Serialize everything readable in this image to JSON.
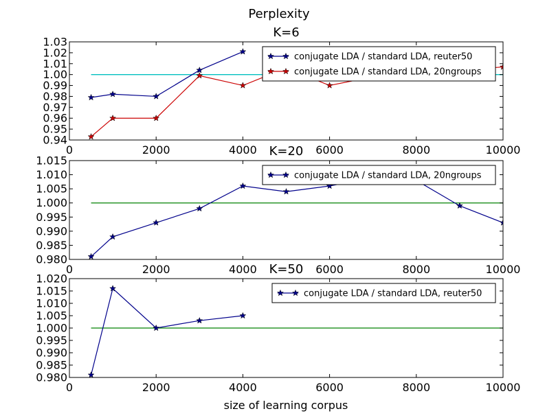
{
  "figure": {
    "suptitle": "Perplexity",
    "xlabel": "size of learning corpus"
  },
  "chart_data": [
    {
      "type": "line",
      "title": "K=6",
      "xlim": [
        0,
        10000
      ],
      "ylim": [
        0.94,
        1.03
      ],
      "xticks": [
        0,
        2000,
        4000,
        6000,
        8000,
        10000
      ],
      "yticks": [
        0.94,
        0.95,
        0.96,
        0.97,
        0.98,
        0.99,
        1.0,
        1.01,
        1.02,
        1.03
      ],
      "ytick_decimals": 2,
      "legend_position": "top-right",
      "reference_line": {
        "y": 1.0,
        "x": [
          500,
          10000
        ],
        "color": "#00bfbf"
      },
      "series": [
        {
          "name": "conjugate LDA / standard LDA, reuter50",
          "color": "#00008b",
          "x": [
            500,
            1000,
            2000,
            3000,
            4000
          ],
          "y": [
            0.979,
            0.982,
            0.98,
            1.004,
            1.021
          ]
        },
        {
          "name": "conjugate LDA / standard LDA, 20ngroups",
          "color": "#cc0000",
          "x": [
            500,
            1000,
            2000,
            3000,
            4000,
            5000,
            6000,
            7000,
            8000,
            9000,
            10000
          ],
          "y": [
            0.943,
            0.96,
            0.96,
            0.999,
            0.99,
            1.006,
            0.99,
            0.998,
            1.003,
            1.004,
            1.007
          ]
        }
      ]
    },
    {
      "type": "line",
      "title": "K=20",
      "xlim": [
        0,
        10000
      ],
      "ylim": [
        0.98,
        1.015
      ],
      "xticks": [
        0,
        2000,
        4000,
        6000,
        8000,
        10000
      ],
      "yticks": [
        0.98,
        0.985,
        0.99,
        0.995,
        1.0,
        1.005,
        1.01,
        1.015
      ],
      "ytick_decimals": 3,
      "legend_position": "top-right",
      "reference_line": {
        "y": 1.0,
        "x": [
          500,
          10000
        ],
        "color": "#008000"
      },
      "series": [
        {
          "name": "conjugate LDA / standard LDA, 20ngroups",
          "color": "#00008b",
          "x": [
            500,
            1000,
            2000,
            3000,
            4000,
            5000,
            6000,
            7000,
            8000,
            9000,
            10000
          ],
          "y": [
            0.981,
            0.988,
            0.993,
            0.998,
            1.006,
            1.004,
            1.006,
            1.009,
            1.008,
            0.999,
            0.993
          ]
        }
      ]
    },
    {
      "type": "line",
      "title": "K=50",
      "xlim": [
        0,
        10000
      ],
      "ylim": [
        0.98,
        1.02
      ],
      "xticks": [
        0,
        2000,
        4000,
        6000,
        8000,
        10000
      ],
      "yticks": [
        0.98,
        0.985,
        0.99,
        0.995,
        1.0,
        1.005,
        1.01,
        1.015,
        1.02
      ],
      "ytick_decimals": 3,
      "legend_position": "top-right",
      "reference_line": {
        "y": 1.0,
        "x": [
          500,
          10000
        ],
        "color": "#008000"
      },
      "series": [
        {
          "name": "conjugate LDA / standard LDA, reuter50",
          "color": "#00008b",
          "x": [
            500,
            1000,
            2000,
            3000,
            4000
          ],
          "y": [
            0.981,
            1.016,
            1.0,
            1.003,
            1.005
          ]
        }
      ]
    }
  ]
}
